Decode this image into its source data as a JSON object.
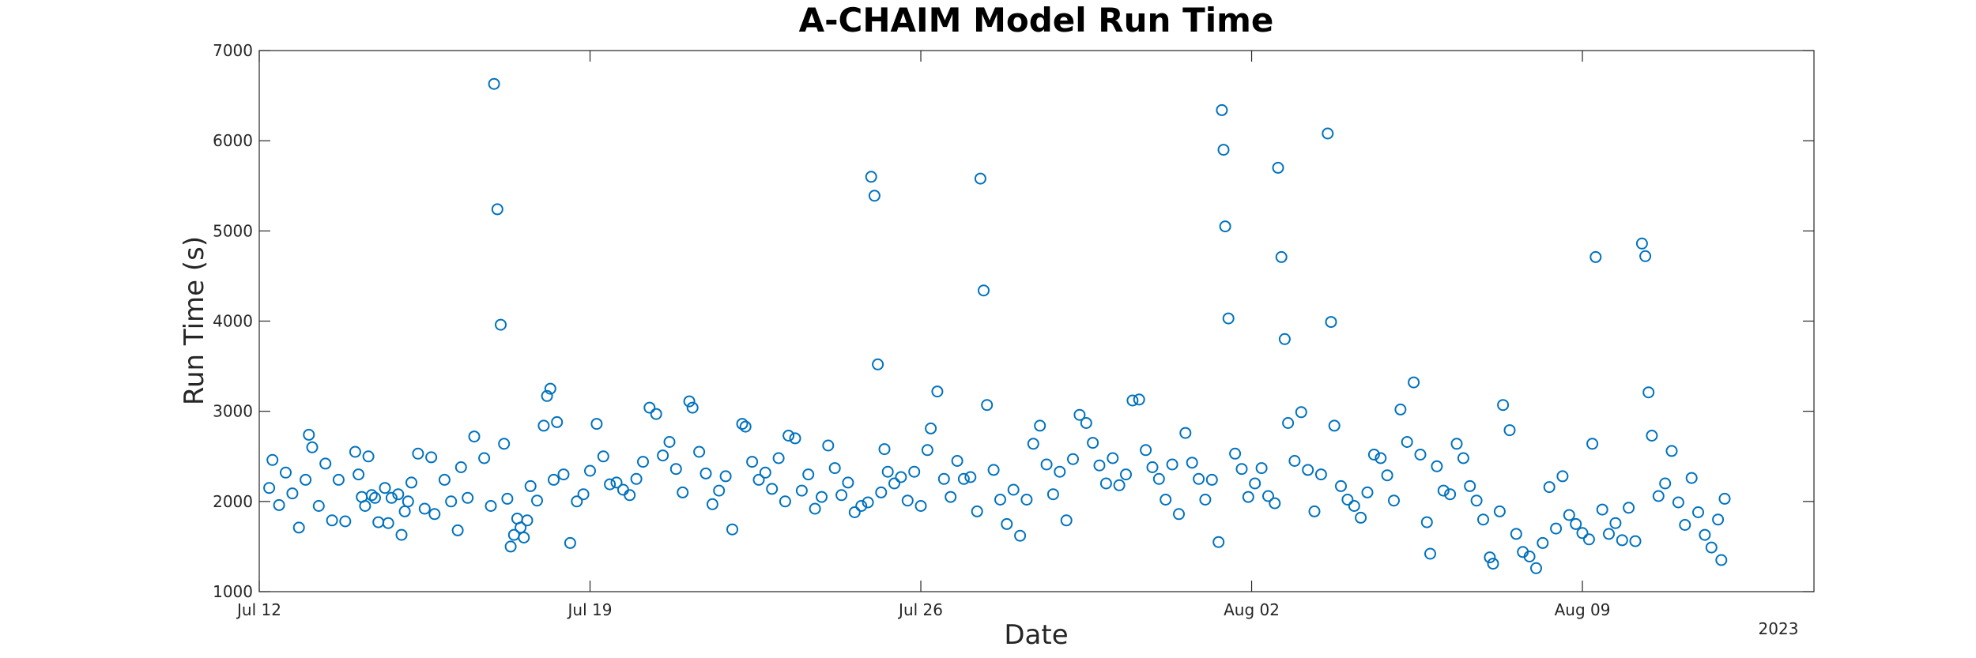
{
  "chart_data": {
    "type": "scatter",
    "title": "A-CHAIM Model Run Time",
    "xlabel": "Date",
    "ylabel": "Run Time (s)",
    "x_units": "days since Jul 12",
    "xlim": [
      0,
      47
    ],
    "ylim": [
      1000,
      7000
    ],
    "yticks": [
      1000,
      2000,
      3000,
      4000,
      5000,
      6000,
      7000
    ],
    "xticks": [
      {
        "value": 0,
        "label": "Jul 12"
      },
      {
        "value": 10,
        "label": "Jul 19"
      },
      {
        "value": 20,
        "label": "Jul 26"
      },
      {
        "value": 30,
        "label": "Aug 02"
      },
      {
        "value": 40,
        "label": "Aug 09"
      }
    ],
    "year_label": "2023",
    "grid": false,
    "marker": "open-circle",
    "color": "#0072BD",
    "series": [
      {
        "points": [
          [
            0.3,
            2150
          ],
          [
            0.4,
            2460
          ],
          [
            0.6,
            1960
          ],
          [
            0.8,
            2320
          ],
          [
            1.0,
            2090
          ],
          [
            1.2,
            1710
          ],
          [
            1.4,
            2240
          ],
          [
            1.5,
            2740
          ],
          [
            1.6,
            2600
          ],
          [
            1.8,
            1950
          ],
          [
            2.0,
            2420
          ],
          [
            2.2,
            1790
          ],
          [
            2.4,
            2240
          ],
          [
            2.6,
            1780
          ],
          [
            2.9,
            2550
          ],
          [
            3.0,
            2300
          ],
          [
            3.1,
            2050
          ],
          [
            3.2,
            1950
          ],
          [
            3.3,
            2500
          ],
          [
            3.4,
            2070
          ],
          [
            3.5,
            2040
          ],
          [
            3.6,
            1770
          ],
          [
            3.8,
            2150
          ],
          [
            3.9,
            1760
          ],
          [
            4.0,
            2040
          ],
          [
            4.2,
            2080
          ],
          [
            4.3,
            1630
          ],
          [
            4.4,
            1890
          ],
          [
            4.5,
            2000
          ],
          [
            4.6,
            2210
          ],
          [
            4.8,
            2530
          ],
          [
            5.0,
            1920
          ],
          [
            5.2,
            2490
          ],
          [
            5.3,
            1860
          ],
          [
            5.6,
            2240
          ],
          [
            5.8,
            2000
          ],
          [
            6.0,
            1680
          ],
          [
            6.1,
            2380
          ],
          [
            6.3,
            2040
          ],
          [
            6.5,
            2720
          ],
          [
            6.8,
            2480
          ],
          [
            7.0,
            1950
          ],
          [
            7.1,
            6630
          ],
          [
            7.2,
            5240
          ],
          [
            7.3,
            3960
          ],
          [
            7.4,
            2640
          ],
          [
            7.5,
            2030
          ],
          [
            7.6,
            1500
          ],
          [
            7.7,
            1630
          ],
          [
            7.8,
            1810
          ],
          [
            7.9,
            1710
          ],
          [
            8.0,
            1600
          ],
          [
            8.1,
            1790
          ],
          [
            8.2,
            2170
          ],
          [
            8.4,
            2010
          ],
          [
            8.6,
            2840
          ],
          [
            8.7,
            3170
          ],
          [
            8.8,
            3250
          ],
          [
            8.9,
            2240
          ],
          [
            9.0,
            2880
          ],
          [
            9.2,
            2300
          ],
          [
            9.4,
            1540
          ],
          [
            9.6,
            2000
          ],
          [
            9.8,
            2080
          ],
          [
            10.0,
            2340
          ],
          [
            10.2,
            2860
          ],
          [
            10.4,
            2500
          ],
          [
            10.6,
            2190
          ],
          [
            10.8,
            2210
          ],
          [
            11.0,
            2130
          ],
          [
            11.2,
            2070
          ],
          [
            11.4,
            2250
          ],
          [
            11.6,
            2440
          ],
          [
            11.8,
            3040
          ],
          [
            12.0,
            2970
          ],
          [
            12.2,
            2510
          ],
          [
            12.4,
            2660
          ],
          [
            12.6,
            2360
          ],
          [
            12.8,
            2100
          ],
          [
            13.0,
            3110
          ],
          [
            13.1,
            3040
          ],
          [
            13.3,
            2550
          ],
          [
            13.5,
            2310
          ],
          [
            13.7,
            1970
          ],
          [
            13.9,
            2120
          ],
          [
            14.1,
            2280
          ],
          [
            14.3,
            1690
          ],
          [
            14.6,
            2860
          ],
          [
            14.7,
            2830
          ],
          [
            14.9,
            2440
          ],
          [
            15.1,
            2240
          ],
          [
            15.3,
            2320
          ],
          [
            15.5,
            2140
          ],
          [
            15.7,
            2480
          ],
          [
            15.9,
            2000
          ],
          [
            16.0,
            2730
          ],
          [
            16.2,
            2700
          ],
          [
            16.4,
            2120
          ],
          [
            16.6,
            2300
          ],
          [
            16.8,
            1920
          ],
          [
            17.0,
            2050
          ],
          [
            17.2,
            2620
          ],
          [
            17.4,
            2370
          ],
          [
            17.6,
            2070
          ],
          [
            17.8,
            2210
          ],
          [
            18.0,
            1880
          ],
          [
            18.2,
            1950
          ],
          [
            18.4,
            1990
          ],
          [
            18.5,
            5600
          ],
          [
            18.6,
            5390
          ],
          [
            18.7,
            3520
          ],
          [
            18.8,
            2100
          ],
          [
            18.9,
            2580
          ],
          [
            19.0,
            2330
          ],
          [
            19.2,
            2200
          ],
          [
            19.4,
            2270
          ],
          [
            19.6,
            2010
          ],
          [
            19.8,
            2330
          ],
          [
            20.0,
            1950
          ],
          [
            20.2,
            2570
          ],
          [
            20.3,
            2810
          ],
          [
            20.5,
            3220
          ],
          [
            20.7,
            2250
          ],
          [
            20.9,
            2050
          ],
          [
            21.1,
            2450
          ],
          [
            21.3,
            2250
          ],
          [
            21.5,
            2270
          ],
          [
            21.7,
            1890
          ],
          [
            21.8,
            5580
          ],
          [
            21.9,
            4340
          ],
          [
            22.0,
            3070
          ],
          [
            22.2,
            2350
          ],
          [
            22.4,
            2020
          ],
          [
            22.6,
            1750
          ],
          [
            22.8,
            2130
          ],
          [
            23.0,
            1620
          ],
          [
            23.2,
            2020
          ],
          [
            23.4,
            2640
          ],
          [
            23.6,
            2840
          ],
          [
            23.8,
            2410
          ],
          [
            24.0,
            2080
          ],
          [
            24.2,
            2330
          ],
          [
            24.4,
            1790
          ],
          [
            24.6,
            2470
          ],
          [
            24.8,
            2960
          ],
          [
            25.0,
            2870
          ],
          [
            25.2,
            2650
          ],
          [
            25.4,
            2400
          ],
          [
            25.6,
            2200
          ],
          [
            25.8,
            2480
          ],
          [
            26.0,
            2180
          ],
          [
            26.2,
            2300
          ],
          [
            26.4,
            3120
          ],
          [
            26.6,
            3130
          ],
          [
            26.8,
            2570
          ],
          [
            27.0,
            2380
          ],
          [
            27.2,
            2250
          ],
          [
            27.4,
            2020
          ],
          [
            27.6,
            2410
          ],
          [
            27.8,
            1860
          ],
          [
            28.0,
            2760
          ],
          [
            28.2,
            2430
          ],
          [
            28.4,
            2250
          ],
          [
            28.6,
            2020
          ],
          [
            28.8,
            2240
          ],
          [
            29.0,
            1550
          ],
          [
            29.1,
            6340
          ],
          [
            29.15,
            5900
          ],
          [
            29.2,
            5050
          ],
          [
            29.3,
            4030
          ],
          [
            29.5,
            2530
          ],
          [
            29.7,
            2360
          ],
          [
            29.9,
            2050
          ],
          [
            30.1,
            2200
          ],
          [
            30.3,
            2370
          ],
          [
            30.5,
            2060
          ],
          [
            30.7,
            1980
          ],
          [
            30.8,
            5700
          ],
          [
            30.9,
            4710
          ],
          [
            31.0,
            3800
          ],
          [
            31.1,
            2870
          ],
          [
            31.3,
            2450
          ],
          [
            31.5,
            2990
          ],
          [
            31.7,
            2350
          ],
          [
            31.9,
            1890
          ],
          [
            32.1,
            2300
          ],
          [
            32.3,
            6080
          ],
          [
            32.4,
            3990
          ],
          [
            32.5,
            2840
          ],
          [
            32.7,
            2170
          ],
          [
            32.9,
            2020
          ],
          [
            33.1,
            1950
          ],
          [
            33.3,
            1820
          ],
          [
            33.5,
            2100
          ],
          [
            33.7,
            2520
          ],
          [
            33.9,
            2480
          ],
          [
            34.1,
            2290
          ],
          [
            34.3,
            2010
          ],
          [
            34.5,
            3020
          ],
          [
            34.7,
            2660
          ],
          [
            34.9,
            3320
          ],
          [
            35.1,
            2520
          ],
          [
            35.3,
            1770
          ],
          [
            35.4,
            1420
          ],
          [
            35.6,
            2390
          ],
          [
            35.8,
            2120
          ],
          [
            36.0,
            2080
          ],
          [
            36.2,
            2640
          ],
          [
            36.4,
            2480
          ],
          [
            36.6,
            2170
          ],
          [
            36.8,
            2010
          ],
          [
            37.0,
            1800
          ],
          [
            37.2,
            1380
          ],
          [
            37.3,
            1310
          ],
          [
            37.5,
            1890
          ],
          [
            37.6,
            3070
          ],
          [
            37.8,
            2790
          ],
          [
            38.0,
            1640
          ],
          [
            38.2,
            1440
          ],
          [
            38.4,
            1390
          ],
          [
            38.6,
            1260
          ],
          [
            38.8,
            1540
          ],
          [
            39.0,
            2160
          ],
          [
            39.2,
            1700
          ],
          [
            39.4,
            2280
          ],
          [
            39.6,
            1850
          ],
          [
            39.8,
            1750
          ],
          [
            40.0,
            1650
          ],
          [
            40.2,
            1580
          ],
          [
            40.3,
            2640
          ],
          [
            40.4,
            4710
          ],
          [
            40.6,
            1910
          ],
          [
            40.8,
            1640
          ],
          [
            41.0,
            1760
          ],
          [
            41.2,
            1570
          ],
          [
            41.4,
            1930
          ],
          [
            41.6,
            1560
          ],
          [
            41.8,
            4860
          ],
          [
            41.9,
            4720
          ],
          [
            42.0,
            3210
          ],
          [
            42.1,
            2730
          ],
          [
            42.3,
            2060
          ],
          [
            42.5,
            2200
          ],
          [
            42.7,
            2560
          ],
          [
            42.9,
            1990
          ],
          [
            43.1,
            1740
          ],
          [
            43.3,
            2260
          ],
          [
            43.5,
            1880
          ],
          [
            43.7,
            1630
          ],
          [
            43.9,
            1490
          ],
          [
            44.1,
            1800
          ],
          [
            44.2,
            1350
          ],
          [
            44.3,
            2030
          ]
        ]
      }
    ]
  }
}
